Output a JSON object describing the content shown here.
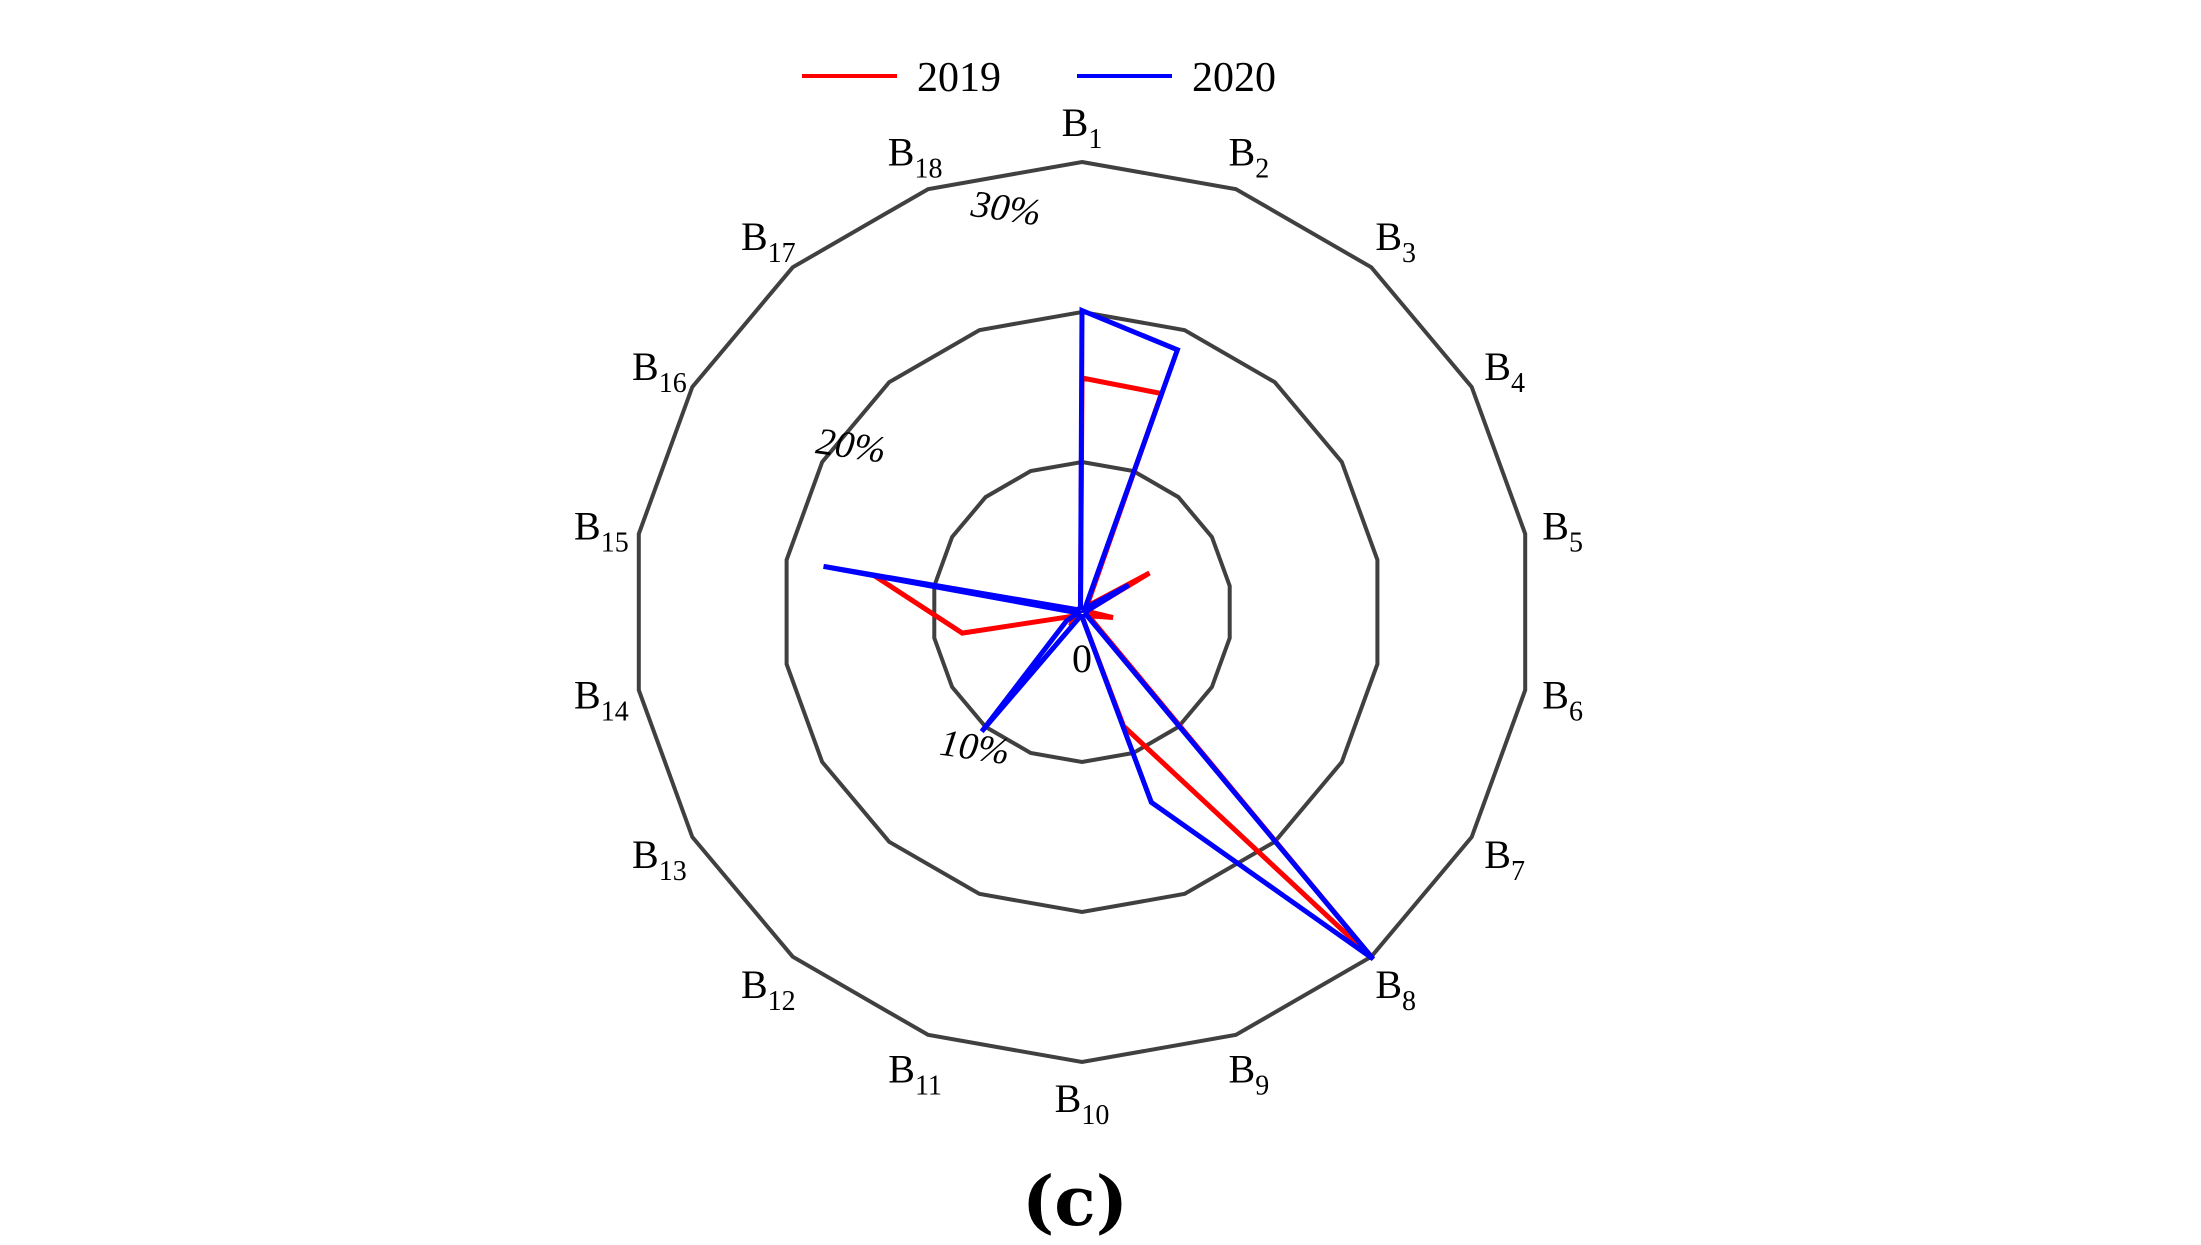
{
  "chart_data": {
    "type": "radar",
    "categories": [
      "B1",
      "B2",
      "B3",
      "B4",
      "B5",
      "B6",
      "B7",
      "B8",
      "B9",
      "B10",
      "B11",
      "B12",
      "B13",
      "B14",
      "B15",
      "B16",
      "B17",
      "B18"
    ],
    "category_labels": [
      {
        "base": "B",
        "sub": "1"
      },
      {
        "base": "B",
        "sub": "2"
      },
      {
        "base": "B",
        "sub": "3"
      },
      {
        "base": "B",
        "sub": "4"
      },
      {
        "base": "B",
        "sub": "5"
      },
      {
        "base": "B",
        "sub": "6"
      },
      {
        "base": "B",
        "sub": "7"
      },
      {
        "base": "B",
        "sub": "8"
      },
      {
        "base": "B",
        "sub": "9"
      },
      {
        "base": "B",
        "sub": "10"
      },
      {
        "base": "B",
        "sub": "11"
      },
      {
        "base": "B",
        "sub": "12"
      },
      {
        "base": "B",
        "sub": "13"
      },
      {
        "base": "B",
        "sub": "14"
      },
      {
        "base": "B",
        "sub": "15"
      },
      {
        "base": "B",
        "sub": "16"
      },
      {
        "base": "B",
        "sub": "17"
      },
      {
        "base": "B",
        "sub": "18"
      }
    ],
    "series": [
      {
        "name": "2019",
        "color": "#ff0000",
        "values": [
          15.6,
          15.5,
          0.5,
          5.2,
          0.3,
          2.1,
          0.5,
          30.1,
          8.1,
          0.3,
          0.3,
          1.2,
          0.5,
          8.1,
          14.1,
          0.3,
          0.3,
          0.3
        ]
      },
      {
        "name": "2020",
        "color": "#0000ff",
        "values": [
          20.1,
          18.6,
          0.3,
          3.6,
          0.3,
          0.3,
          0.3,
          30.2,
          13.5,
          0.3,
          0.3,
          10.4,
          1.2,
          0.3,
          17.5,
          0.3,
          0.3,
          0.3
        ]
      }
    ],
    "rings": [
      10,
      20,
      30
    ],
    "ring_labels": [
      "10%",
      "20%",
      "30%"
    ],
    "center_label": "0",
    "rmax": 30,
    "legend_position": "top",
    "grid_color": "#404040"
  },
  "panel_label": "(c)"
}
